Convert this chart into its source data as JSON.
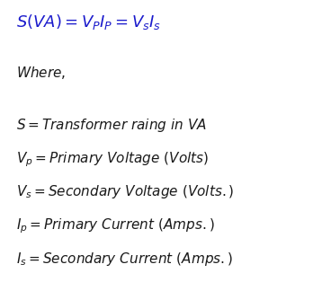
{
  "background_color": "#ffffff",
  "formula_color": "#1a1acc",
  "text_color": "#1a1a1a",
  "formula_fontsize": 13,
  "where_fontsize": 11,
  "def_fontsize": 11,
  "figsize": [
    3.68,
    3.14
  ],
  "dpi": 100
}
